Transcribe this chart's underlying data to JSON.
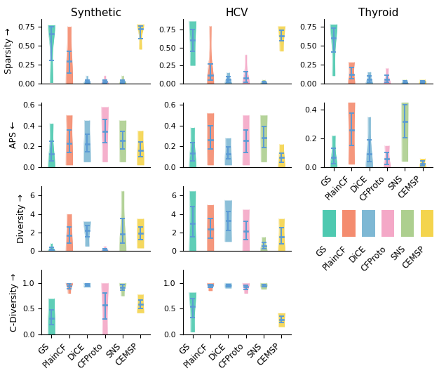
{
  "methods": [
    "GS",
    "PlainCF",
    "DiCE",
    "CFProto",
    "SNS",
    "CEMSP"
  ],
  "colors": [
    "#4EC9B0",
    "#F48C6F",
    "#7EB8D4",
    "#F4A8C7",
    "#ADCF8F",
    "#F4D44D"
  ],
  "col_titles": [
    "Synthetic",
    "HCV",
    "Thyroid"
  ],
  "row_labels": [
    "Sparsity →",
    "APS ←",
    "Diversity →",
    "C-Diversity →"
  ],
  "ylims": {
    "sparsity": [
      0.0,
      0.9
    ],
    "aps_syn": [
      0.0,
      0.62
    ],
    "aps_hcv": [
      0.0,
      0.62
    ],
    "aps_thy": [
      0.0,
      0.45
    ],
    "diversity": [
      0.0,
      7.0
    ],
    "cdiversity": [
      0.0,
      1.25
    ]
  },
  "violin_data": {
    "synthetic_sparsity": {
      "GS": {
        "vals": [
          0.75,
          0.76,
          0.77,
          0.75,
          0.73,
          0.7,
          0.65,
          0.55,
          0.45,
          0.3,
          0.1,
          0.05,
          0.01
        ]
      },
      "PlainCF": {
        "vals": [
          0.0,
          0.01,
          0.05,
          0.1,
          0.15,
          0.2,
          0.25,
          0.28,
          0.3,
          0.32,
          0.35,
          0.4,
          0.5,
          0.6,
          0.7,
          0.75
        ]
      },
      "DiCE": {
        "vals": [
          0.0,
          0.0,
          0.0,
          0.01,
          0.01,
          0.02,
          0.02,
          0.03,
          0.04,
          0.05,
          0.08,
          0.1
        ]
      },
      "CFProto": {
        "vals": [
          0.0,
          0.0,
          0.0,
          0.01,
          0.01,
          0.02,
          0.02,
          0.03,
          0.04,
          0.05,
          0.08,
          0.1
        ]
      },
      "SNS": {
        "vals": [
          0.0,
          0.0,
          0.0,
          0.01,
          0.01,
          0.02,
          0.02,
          0.03,
          0.04,
          0.05,
          0.08,
          0.1
        ]
      },
      "CEMSP": {
        "vals": [
          0.45,
          0.5,
          0.55,
          0.62,
          0.68,
          0.72,
          0.74,
          0.75,
          0.76,
          0.77,
          0.78
        ]
      }
    },
    "hcv_sparsity": {
      "GS": {
        "vals": [
          0.25,
          0.3,
          0.38,
          0.45,
          0.5,
          0.55,
          0.6,
          0.65,
          0.7,
          0.75,
          0.8,
          0.85,
          0.87
        ]
      },
      "PlainCF": {
        "vals": [
          0.0,
          0.01,
          0.02,
          0.04,
          0.06,
          0.08,
          0.1,
          0.12,
          0.15,
          0.2,
          0.3,
          0.5,
          0.7,
          0.8
        ]
      },
      "DiCE": {
        "vals": [
          0.0,
          0.0,
          0.01,
          0.02,
          0.03,
          0.05,
          0.06,
          0.08,
          0.1,
          0.12,
          0.15
        ]
      },
      "CFProto": {
        "vals": [
          0.0,
          0.0,
          0.01,
          0.02,
          0.04,
          0.06,
          0.08,
          0.1,
          0.15,
          0.2,
          0.3,
          0.4
        ]
      },
      "SNS": {
        "vals": [
          0.0,
          0.0,
          0.0,
          0.01,
          0.01,
          0.02,
          0.03,
          0.04,
          0.05
        ]
      },
      "CEMSP": {
        "vals": [
          0.45,
          0.52,
          0.58,
          0.62,
          0.65,
          0.68,
          0.72,
          0.75,
          0.78,
          0.8
        ]
      }
    },
    "thyroid_sparsity": {
      "GS": {
        "vals": [
          0.1,
          0.2,
          0.35,
          0.48,
          0.55,
          0.6,
          0.65,
          0.7,
          0.75,
          0.77,
          0.78
        ]
      },
      "PlainCF": {
        "vals": [
          0.0,
          0.02,
          0.05,
          0.08,
          0.1,
          0.14,
          0.18,
          0.22,
          0.26,
          0.28
        ]
      },
      "DiCE": {
        "vals": [
          0.0,
          0.0,
          0.01,
          0.02,
          0.04,
          0.06,
          0.08,
          0.1,
          0.12,
          0.15
        ]
      },
      "CFProto": {
        "vals": [
          0.0,
          0.0,
          0.01,
          0.02,
          0.04,
          0.06,
          0.08,
          0.12,
          0.16,
          0.2
        ]
      },
      "SNS": {
        "vals": [
          0.0,
          0.0,
          0.01,
          0.01,
          0.02,
          0.03,
          0.04,
          0.05
        ]
      },
      "CEMSP": {
        "vals": [
          0.0,
          0.01,
          0.01,
          0.02,
          0.02,
          0.03,
          0.03,
          0.04,
          0.05
        ]
      }
    },
    "synthetic_aps": {
      "GS": {
        "vals": [
          0.0,
          0.01,
          0.03,
          0.05,
          0.07,
          0.09,
          0.11,
          0.13,
          0.15,
          0.18,
          0.22,
          0.28,
          0.35,
          0.4,
          0.42
        ]
      },
      "PlainCF": {
        "vals": [
          0.02,
          0.06,
          0.1,
          0.14,
          0.17,
          0.2,
          0.23,
          0.26,
          0.3,
          0.36,
          0.42,
          0.48,
          0.5
        ]
      },
      "DiCE": {
        "vals": [
          0.05,
          0.08,
          0.12,
          0.16,
          0.19,
          0.21,
          0.23,
          0.26,
          0.3,
          0.36,
          0.42,
          0.45
        ]
      },
      "CFProto": {
        "vals": [
          0.05,
          0.1,
          0.18,
          0.25,
          0.3,
          0.33,
          0.36,
          0.4,
          0.44,
          0.5,
          0.55,
          0.58
        ]
      },
      "SNS": {
        "vals": [
          0.05,
          0.1,
          0.15,
          0.18,
          0.21,
          0.24,
          0.27,
          0.3,
          0.33,
          0.38,
          0.42,
          0.45
        ]
      },
      "CEMSP": {
        "vals": [
          0.02,
          0.06,
          0.08,
          0.1,
          0.12,
          0.14,
          0.16,
          0.18,
          0.2,
          0.24,
          0.28,
          0.32,
          0.35
        ]
      }
    },
    "hcv_aps": {
      "GS": {
        "vals": [
          0.0,
          0.02,
          0.04,
          0.07,
          0.1,
          0.12,
          0.15,
          0.18,
          0.22,
          0.28,
          0.33,
          0.38
        ]
      },
      "PlainCF": {
        "vals": [
          0.02,
          0.08,
          0.14,
          0.19,
          0.22,
          0.25,
          0.28,
          0.32,
          0.38,
          0.44,
          0.5,
          0.52
        ]
      },
      "DiCE": {
        "vals": [
          0.02,
          0.05,
          0.07,
          0.09,
          0.11,
          0.13,
          0.15,
          0.18,
          0.21,
          0.25,
          0.28
        ]
      },
      "CFProto": {
        "vals": [
          0.02,
          0.06,
          0.1,
          0.15,
          0.2,
          0.24,
          0.27,
          0.3,
          0.34,
          0.4,
          0.46,
          0.5
        ]
      },
      "SNS": {
        "vals": [
          0.05,
          0.1,
          0.16,
          0.2,
          0.24,
          0.27,
          0.3,
          0.33,
          0.38,
          0.43,
          0.48,
          0.5
        ]
      },
      "CEMSP": {
        "vals": [
          0.0,
          0.02,
          0.04,
          0.06,
          0.08,
          0.1,
          0.12,
          0.14,
          0.18,
          0.22
        ]
      }
    },
    "thyroid_aps": {
      "GS": {
        "vals": [
          0.0,
          0.01,
          0.02,
          0.04,
          0.06,
          0.08,
          0.1,
          0.14,
          0.18,
          0.22
        ]
      },
      "PlainCF": {
        "vals": [
          0.02,
          0.06,
          0.12,
          0.18,
          0.22,
          0.26,
          0.3,
          0.35,
          0.4,
          0.45,
          0.48
        ]
      },
      "DiCE": {
        "vals": [
          0.0,
          0.01,
          0.03,
          0.05,
          0.07,
          0.09,
          0.12,
          0.16,
          0.22,
          0.28,
          0.35
        ]
      },
      "CFProto": {
        "vals": [
          0.0,
          0.01,
          0.02,
          0.04,
          0.06,
          0.08,
          0.1,
          0.13,
          0.15
        ]
      },
      "SNS": {
        "vals": [
          0.04,
          0.1,
          0.16,
          0.22,
          0.26,
          0.3,
          0.34,
          0.38,
          0.42,
          0.48,
          0.54,
          0.58
        ]
      },
      "CEMSP": {
        "vals": [
          0.0,
          0.01,
          0.01,
          0.02,
          0.03,
          0.04,
          0.05,
          0.06
        ]
      }
    },
    "synthetic_diversity": {
      "GS": {
        "vals": [
          0.0,
          0.0,
          0.01,
          0.05,
          0.1,
          0.15,
          0.2,
          0.3,
          0.4,
          0.6,
          0.8
        ]
      },
      "PlainCF": {
        "vals": [
          0.0,
          0.2,
          0.5,
          0.8,
          1.1,
          1.4,
          1.7,
          2.0,
          2.3,
          2.6,
          3.0,
          3.5,
          4.0
        ]
      },
      "DiCE": {
        "vals": [
          0.5,
          0.8,
          1.2,
          1.6,
          1.9,
          2.1,
          2.3,
          2.5,
          2.7,
          2.9,
          3.0,
          3.2
        ]
      },
      "CFProto": {
        "vals": [
          0.0,
          0.0,
          0.0,
          0.01,
          0.05,
          0.1,
          0.15,
          0.2,
          0.3,
          0.4,
          0.5
        ]
      },
      "SNS": {
        "vals": [
          0.0,
          0.2,
          0.5,
          0.8,
          1.2,
          1.5,
          1.8,
          2.2,
          2.8,
          3.5,
          4.5,
          5.5,
          6.5
        ]
      },
      "CEMSP": {
        "vals": [
          0.3,
          0.6,
          1.0,
          1.3,
          1.6,
          1.8,
          2.0,
          2.2,
          2.5,
          2.8,
          3.2,
          3.5
        ]
      }
    },
    "hcv_diversity": {
      "GS": {
        "vals": [
          0.0,
          0.3,
          0.8,
          1.5,
          2.0,
          2.5,
          3.0,
          3.5,
          4.0,
          4.8,
          5.5,
          6.0,
          6.5
        ]
      },
      "PlainCF": {
        "vals": [
          0.0,
          0.4,
          0.9,
          1.4,
          1.8,
          2.1,
          2.4,
          2.7,
          3.0,
          3.5,
          4.0,
          4.5,
          5.0
        ]
      },
      "DiCE": {
        "vals": [
          1.0,
          1.4,
          1.8,
          2.2,
          2.6,
          3.0,
          3.3,
          3.6,
          3.9,
          4.3,
          4.8,
          5.2,
          5.5
        ]
      },
      "CFProto": {
        "vals": [
          0.0,
          0.3,
          0.8,
          1.2,
          1.5,
          1.8,
          2.1,
          2.4,
          2.8,
          3.2,
          3.8,
          4.2,
          4.5
        ]
      },
      "SNS": {
        "vals": [
          0.0,
          0.1,
          0.2,
          0.3,
          0.5,
          0.6,
          0.8,
          1.0,
          1.2,
          1.5
        ]
      },
      "CEMSP": {
        "vals": [
          0.0,
          0.2,
          0.5,
          0.8,
          1.1,
          1.4,
          1.7,
          2.0,
          2.4,
          2.8,
          3.2,
          3.5
        ]
      }
    },
    "synthetic_cdiversity": {
      "GS": {
        "vals": [
          0.0,
          0.05,
          0.12,
          0.18,
          0.23,
          0.27,
          0.3,
          0.34,
          0.38,
          0.43,
          0.5,
          0.58,
          0.65,
          0.7
        ]
      },
      "PlainCF": {
        "vals": [
          0.8,
          0.85,
          0.88,
          0.91,
          0.93,
          0.95,
          0.97,
          0.98,
          0.99,
          1.0
        ]
      },
      "DiCE": {
        "vals": [
          0.92,
          0.93,
          0.94,
          0.95,
          0.96,
          0.97,
          0.98,
          0.99,
          1.0
        ]
      },
      "CFProto": {
        "vals": [
          0.0,
          0.1,
          0.2,
          0.3,
          0.4,
          0.5,
          0.58,
          0.65,
          0.72,
          0.8,
          0.88,
          0.95,
          1.0
        ]
      },
      "SNS": {
        "vals": [
          0.75,
          0.8,
          0.85,
          0.88,
          0.91,
          0.93,
          0.95,
          0.97,
          0.99,
          1.0
        ]
      },
      "CEMSP": {
        "vals": [
          0.42,
          0.45,
          0.48,
          0.51,
          0.54,
          0.57,
          0.6,
          0.63,
          0.66,
          0.7,
          0.75,
          0.78
        ]
      }
    },
    "hcv_cdiversity": {
      "GS": {
        "vals": [
          0.05,
          0.15,
          0.25,
          0.35,
          0.45,
          0.52,
          0.58,
          0.63,
          0.68,
          0.73,
          0.78,
          0.82
        ]
      },
      "PlainCF": {
        "vals": [
          0.85,
          0.88,
          0.91,
          0.93,
          0.95,
          0.96,
          0.97,
          0.98,
          1.0
        ]
      },
      "DiCE": {
        "vals": [
          0.9,
          0.92,
          0.93,
          0.94,
          0.95,
          0.96,
          0.97,
          0.98,
          1.0
        ]
      },
      "CFProto": {
        "vals": [
          0.8,
          0.85,
          0.88,
          0.91,
          0.93,
          0.95,
          0.96,
          0.97,
          1.0
        ]
      },
      "SNS": {
        "vals": [
          0.88,
          0.9,
          0.92,
          0.93,
          0.94,
          0.95,
          0.96,
          0.97,
          0.98,
          1.0
        ]
      },
      "CEMSP": {
        "vals": [
          0.15,
          0.18,
          0.22,
          0.26,
          0.28,
          0.3,
          0.33,
          0.36,
          0.4,
          0.42
        ]
      }
    }
  }
}
